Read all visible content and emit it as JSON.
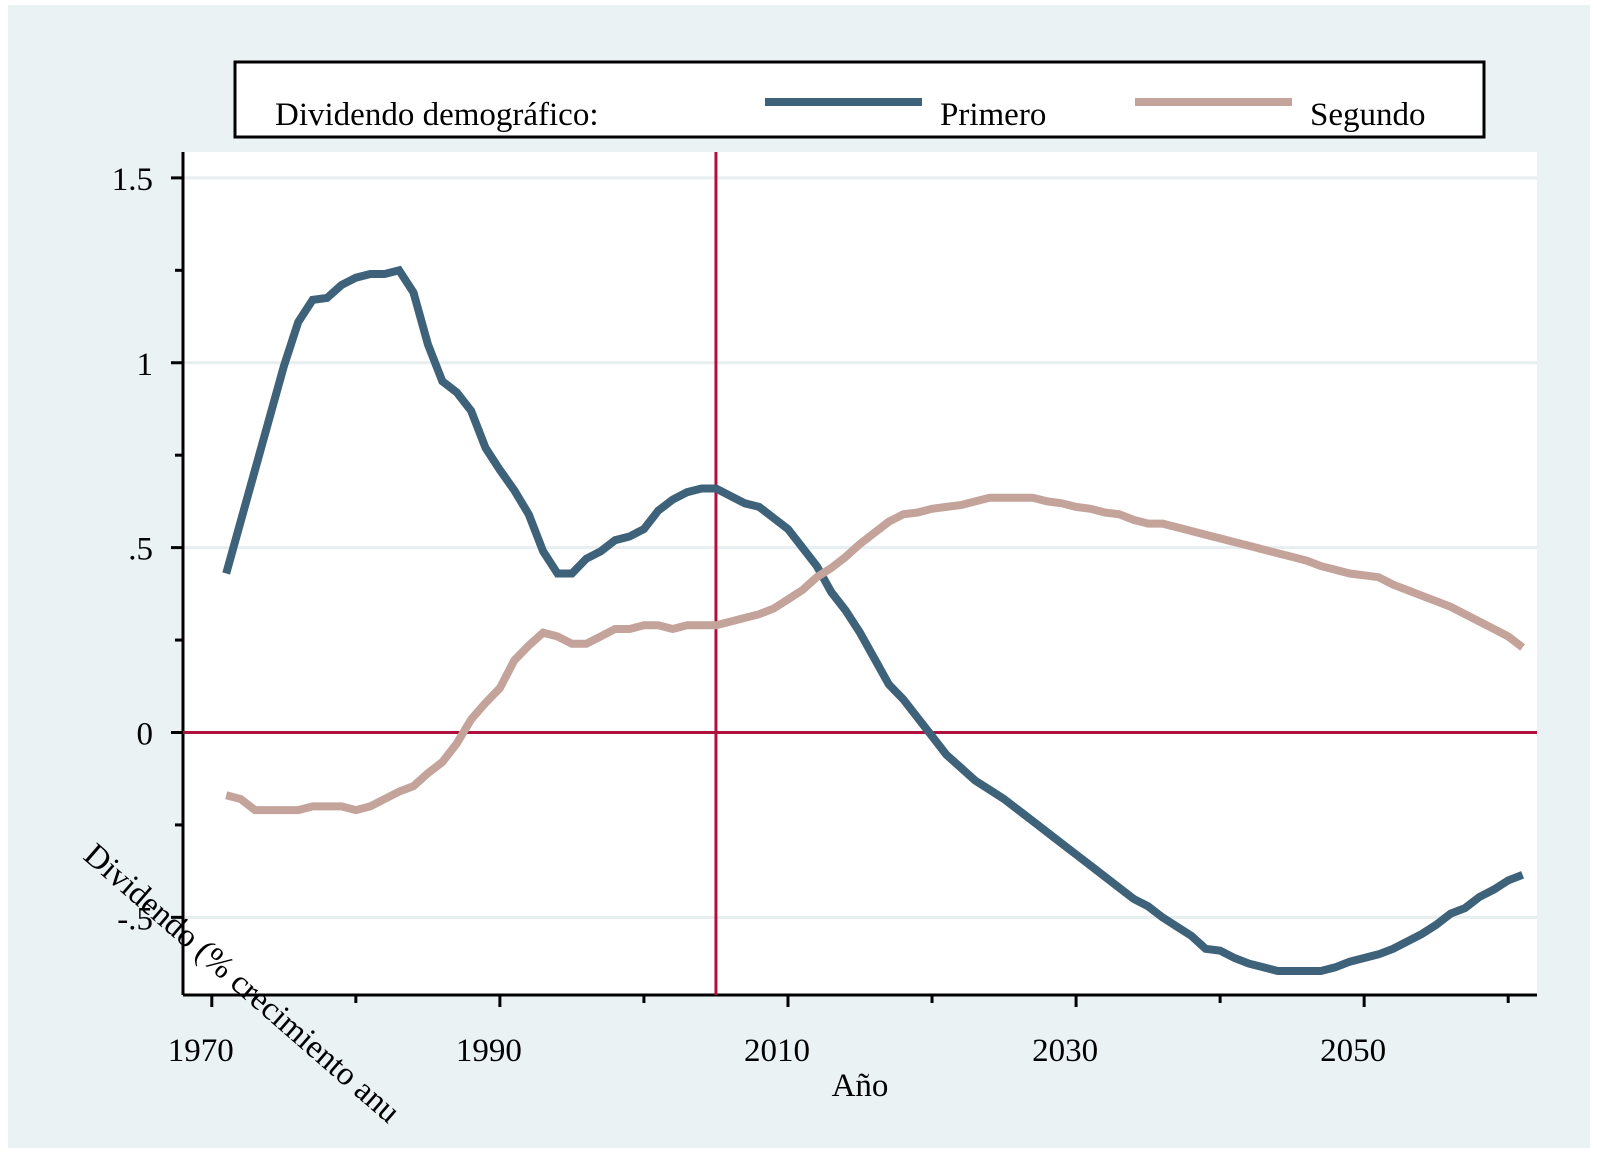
{
  "chart_data": {
    "type": "line",
    "x_label": "Año",
    "y_label": "Dividendo (% crecimiento anu",
    "legend_title": "Dividendo demográfico:",
    "x": [
      1971,
      1972,
      1973,
      1974,
      1975,
      1976,
      1977,
      1978,
      1979,
      1980,
      1981,
      1982,
      1983,
      1984,
      1985,
      1986,
      1987,
      1988,
      1989,
      1990,
      1991,
      1992,
      1993,
      1994,
      1995,
      1996,
      1997,
      1998,
      1999,
      2000,
      2001,
      2002,
      2003,
      2004,
      2005,
      2006,
      2007,
      2008,
      2009,
      2010,
      2011,
      2012,
      2013,
      2014,
      2015,
      2016,
      2017,
      2018,
      2019,
      2020,
      2021,
      2022,
      2023,
      2024,
      2025,
      2026,
      2027,
      2028,
      2029,
      2030,
      2031,
      2032,
      2033,
      2034,
      2035,
      2036,
      2037,
      2038,
      2039,
      2040,
      2041,
      2042,
      2043,
      2044,
      2045,
      2046,
      2047,
      2048,
      2049,
      2050,
      2051,
      2052,
      2053,
      2054,
      2055,
      2056,
      2057,
      2058,
      2059,
      2060,
      2061
    ],
    "series": [
      {
        "name": "Primero",
        "color": "#3e6279",
        "values": [
          0.43,
          0.57,
          0.71,
          0.85,
          0.99,
          1.11,
          1.17,
          1.175,
          1.21,
          1.23,
          1.24,
          1.24,
          1.25,
          1.19,
          1.05,
          0.95,
          0.92,
          0.87,
          0.77,
          0.71,
          0.655,
          0.59,
          0.49,
          0.43,
          0.43,
          0.47,
          0.49,
          0.52,
          0.53,
          0.55,
          0.6,
          0.63,
          0.65,
          0.66,
          0.66,
          0.64,
          0.62,
          0.61,
          0.58,
          0.55,
          0.5,
          0.45,
          0.38,
          0.33,
          0.27,
          0.2,
          0.13,
          0.09,
          0.04,
          -0.01,
          -0.06,
          -0.095,
          -0.13,
          -0.155,
          -0.18,
          -0.21,
          -0.24,
          -0.27,
          -0.3,
          -0.33,
          -0.36,
          -0.39,
          -0.42,
          -0.45,
          -0.47,
          -0.5,
          -0.525,
          -0.55,
          -0.585,
          -0.59,
          -0.61,
          -0.625,
          -0.635,
          -0.645,
          -0.645,
          -0.645,
          -0.645,
          -0.635,
          -0.62,
          -0.61,
          -0.6,
          -0.585,
          -0.565,
          -0.545,
          -0.52,
          -0.49,
          -0.475,
          -0.445,
          -0.425,
          -0.4,
          -0.385
        ]
      },
      {
        "name": "Segundo",
        "color": "#c4a39b",
        "values": [
          -0.17,
          -0.18,
          -0.21,
          -0.21,
          -0.21,
          -0.21,
          -0.2,
          -0.2,
          -0.2,
          -0.21,
          -0.2,
          -0.18,
          -0.16,
          -0.145,
          -0.11,
          -0.08,
          -0.03,
          0.035,
          0.08,
          0.12,
          0.195,
          0.235,
          0.27,
          0.26,
          0.24,
          0.24,
          0.26,
          0.28,
          0.28,
          0.29,
          0.29,
          0.28,
          0.29,
          0.29,
          0.29,
          0.3,
          0.31,
          0.32,
          0.335,
          0.36,
          0.385,
          0.42,
          0.445,
          0.475,
          0.51,
          0.54,
          0.57,
          0.59,
          0.595,
          0.605,
          0.61,
          0.615,
          0.625,
          0.635,
          0.635,
          0.635,
          0.635,
          0.625,
          0.62,
          0.61,
          0.605,
          0.595,
          0.59,
          0.575,
          0.565,
          0.565,
          0.555,
          0.545,
          0.535,
          0.525,
          0.515,
          0.505,
          0.495,
          0.485,
          0.475,
          0.465,
          0.45,
          0.44,
          0.43,
          0.425,
          0.42,
          0.4,
          0.385,
          0.37,
          0.355,
          0.34,
          0.32,
          0.3,
          0.28,
          0.26,
          0.23
        ]
      }
    ],
    "xlim": [
      1968,
      2062
    ],
    "ylim": [
      -0.71,
      1.57
    ],
    "xticks": [
      1970,
      1990,
      2010,
      2030,
      2050
    ],
    "xticks_minor": [
      1980,
      2000,
      2020,
      2040,
      2060
    ],
    "yticks": [
      {
        "value": -0.5,
        "label": "-.5"
      },
      0,
      {
        "value": 0.5,
        "label": ".5"
      },
      1,
      1.5
    ],
    "yticks_minor": [
      -0.25,
      0.25,
      0.75,
      1.25
    ],
    "xline": 2005,
    "yline": 0,
    "ref_color": "#b0103c",
    "grid": true
  }
}
